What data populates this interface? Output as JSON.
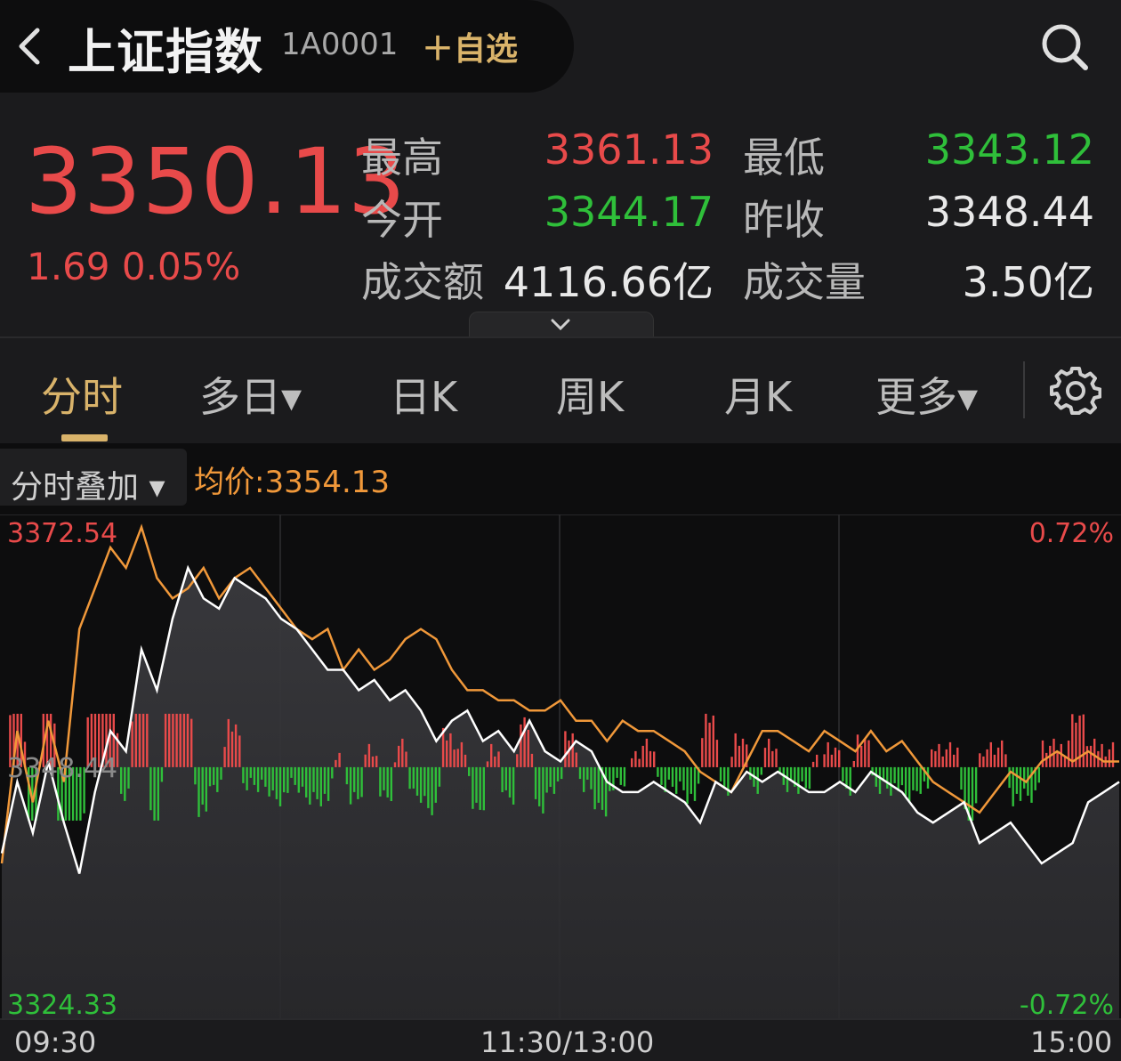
{
  "header": {
    "back_icon": "chevron-left-icon",
    "title": "上证指数",
    "code": "1A0001",
    "favorite_label": "自选",
    "search_icon": "search-icon"
  },
  "quote": {
    "price": "3350.13",
    "change": "1.69 0.05%",
    "stats": [
      {
        "label": "最高",
        "value": "3361.13",
        "color": "red"
      },
      {
        "label": "最低",
        "value": "3343.12",
        "color": "green"
      },
      {
        "label": "今开",
        "value": "3344.17",
        "color": "green"
      },
      {
        "label": "昨收",
        "value": "3348.44",
        "color": "white"
      },
      {
        "label": "成交额",
        "value": "4116.66亿",
        "color": "white"
      },
      {
        "label": "成交量",
        "value": "3.50亿",
        "color": "white"
      }
    ]
  },
  "tabs": [
    {
      "label": "分时",
      "active": true
    },
    {
      "label": "多日▾",
      "active": false
    },
    {
      "label": "日K",
      "active": false
    },
    {
      "label": "周K",
      "active": false
    },
    {
      "label": "月K",
      "active": false
    },
    {
      "label": "更多▾",
      "active": false
    }
  ],
  "settings_icon": "gear-icon",
  "chart_toolbar": {
    "overlay_label": "分时叠加 ▾",
    "avg_label": "均价:3354.13"
  },
  "colors": {
    "up": "#e84a4a",
    "down": "#2fbf3a",
    "accent": "#d9b36a",
    "avg_line": "#f0983a",
    "price_line": "#ffffff"
  },
  "chart_data": {
    "type": "line",
    "yaxis_left": {
      "max": "3372.54",
      "mid": "3348.44",
      "min": "3324.33"
    },
    "yaxis_right": {
      "max": "0.72%",
      "min": "-0.72%"
    },
    "ylim": [
      3324.33,
      3372.54
    ],
    "base": 3348.44,
    "x_labels": [
      "09:30",
      "11:30/13:00",
      "15:00"
    ],
    "series": [
      {
        "color": "#ffffff",
        "values": [
          3340,
          3347,
          3342,
          3349,
          3343,
          3338,
          3346,
          3352,
          3350,
          3360,
          3356,
          3363,
          3368,
          3365,
          3364,
          3367,
          3366,
          3365,
          3363,
          3362,
          3360,
          3358,
          3358,
          3356,
          3357,
          3355,
          3356,
          3354,
          3351,
          3353,
          3354,
          3351,
          3352,
          3350,
          3353,
          3350,
          3349,
          3351,
          3350,
          3347,
          3346,
          3346,
          3347,
          3346,
          3345,
          3343,
          3347,
          3346,
          3348,
          3347,
          3348,
          3347,
          3346,
          3346,
          3347,
          3346,
          3348,
          3347,
          3346,
          3344,
          3343,
          3344,
          3345,
          3341,
          3342,
          3343,
          3341,
          3339,
          3340,
          3341,
          3345,
          3346,
          3347
        ]
      },
      {
        "color": "#f0983a",
        "values": [
          3339,
          3352,
          3345,
          3353,
          3347,
          3362,
          3366,
          3370,
          3368,
          3372,
          3367,
          3365,
          3366,
          3368,
          3365,
          3367,
          3368,
          3366,
          3364,
          3362,
          3361,
          3362,
          3358,
          3360,
          3358,
          3359,
          3361,
          3362,
          3361,
          3358,
          3356,
          3356,
          3355,
          3355,
          3354,
          3354,
          3355,
          3353,
          3353,
          3351,
          3353,
          3352,
          3352,
          3351,
          3350,
          3348,
          3347,
          3346,
          3349,
          3352,
          3352,
          3351,
          3350,
          3352,
          3351,
          3350,
          3352,
          3350,
          3351,
          3349,
          3347,
          3346,
          3345,
          3344,
          3346,
          3348,
          3347,
          3349,
          3350,
          3349,
          3350,
          3349,
          3349
        ]
      }
    ]
  }
}
